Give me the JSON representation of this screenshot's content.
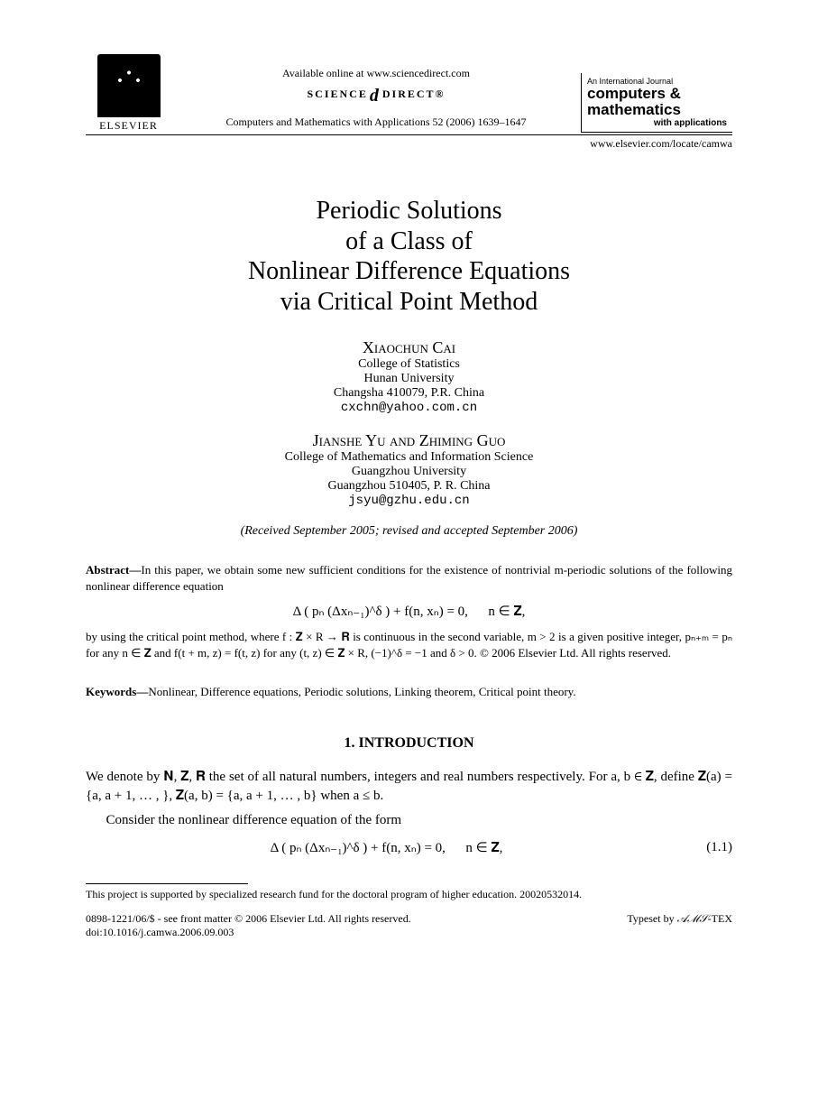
{
  "header": {
    "elsevier_label": "ELSEVIER",
    "available_online": "Available online at www.sciencedirect.com",
    "sciencedirect_prefix": "SCIENCE",
    "sciencedirect_d": "d",
    "sciencedirect_suffix": "DIRECT®",
    "citation": "Computers and Mathematics with Applications 52 (2006) 1639–1647",
    "journal_intl": "An International Journal",
    "journal_title_line1": "computers &",
    "journal_title_line2": "mathematics",
    "journal_sub": "with applications",
    "locate_url": "www.elsevier.com/locate/camwa"
  },
  "title": {
    "line1": "Periodic Solutions",
    "line2": "of a Class of",
    "line3": "Nonlinear Difference Equations",
    "line4": "via Critical Point Method"
  },
  "author1": {
    "name": "Xiaochun Cai",
    "aff1": "College of Statistics",
    "aff2": "Hunan University",
    "aff3": "Changsha 410079, P.R. China",
    "email": "cxchn@yahoo.com.cn"
  },
  "author2": {
    "names": "Jianshe Yu and Zhiming Guo",
    "aff1": "College of Mathematics and Information Science",
    "aff2": "Guangzhou University",
    "aff3": "Guangzhou 510405, P. R. China",
    "email": "jsyu@gzhu.edu.cn"
  },
  "received": "(Received September 2005; revised and accepted September 2006)",
  "abstract": {
    "label": "Abstract—",
    "text1": "In this paper, we obtain some new sufficient conditions for the existence of nontrivial m-periodic solutions of the following nonlinear difference equation",
    "equation": "Δ ( pₙ (Δxₙ₋₁)^δ ) + f(n, xₙ) = 0,   n ∈ 𝐙,",
    "text2a": "by using the critical point method, where f : 𝐙 × R → 𝐑 is continuous in the second variable, m > 2 is a given positive integer, pₙ₊ₘ = pₙ for any n ∈ 𝐙 and f(t + m, z) = f(t, z) for any (t, z) ∈ 𝐙 × R, (−1)^δ = −1 and δ > 0. © 2006 Elsevier Ltd. All rights reserved."
  },
  "keywords": {
    "label": "Keywords—",
    "text": "Nonlinear, Difference equations, Periodic solutions, Linking theorem, Critical point theory."
  },
  "section1_heading": "1. INTRODUCTION",
  "intro": {
    "p1": "We denote by 𝐍, 𝐙, 𝐑 the set of all natural numbers, integers and real numbers respectively. For a, b ∈ 𝐙, define 𝐙(a) = {a, a + 1, … , }, 𝐙(a, b) = {a, a + 1, … , b} when a ≤ b.",
    "p2": "Consider the nonlinear difference equation of the form",
    "eq": "Δ ( pₙ (Δxₙ₋₁)^δ ) + f(n, xₙ) = 0,   n ∈ 𝐙,",
    "eqnum": "(1.1)"
  },
  "footnote": "This project is supported by specialized research fund for the doctoral program of higher education. 20020532014.",
  "footer": {
    "left1": "0898-1221/06/$ - see front matter © 2006 Elsevier Ltd. All rights reserved.",
    "left2": "doi:10.1016/j.camwa.2006.09.003",
    "right_prefix": "Typeset by ",
    "right_ams": "𝒜ℳ𝒮",
    "right_suffix": "-TEX"
  }
}
